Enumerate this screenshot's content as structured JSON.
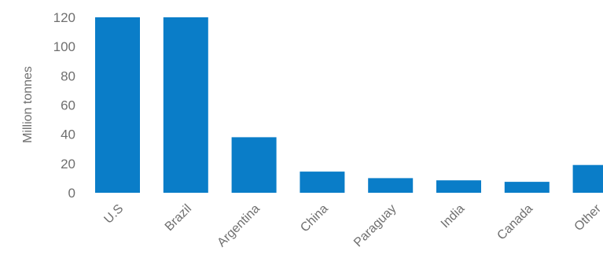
{
  "chart_data": {
    "type": "bar",
    "title": "",
    "xlabel": "",
    "ylabel": "Million tonnes",
    "categories": [
      "U.S",
      "Brazil",
      "Argentina",
      "China",
      "Paraguay",
      "India",
      "Canada",
      "Other"
    ],
    "values": [
      120,
      120,
      38,
      14.5,
      10,
      8.5,
      7.5,
      19
    ],
    "ylim": [
      0,
      120
    ],
    "yticks": [
      0,
      20,
      40,
      60,
      80,
      100,
      120
    ],
    "grid": false,
    "legend": "none",
    "bar_color": "#0a7dc8",
    "text_color": "#6f6f6f"
  }
}
